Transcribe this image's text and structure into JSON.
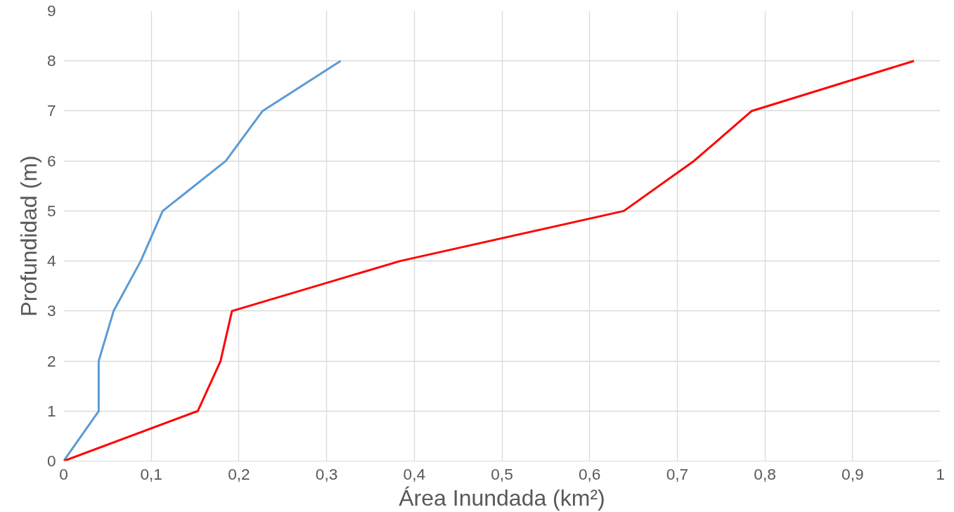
{
  "chart_data": {
    "type": "line",
    "xlabel": "Área Inundada (km²)",
    "ylabel": "Profundidad (m)",
    "xlim": [
      0,
      1
    ],
    "xticks": [
      {
        "value": 0,
        "label": "0"
      },
      {
        "value": 0.1,
        "label": "0,1"
      },
      {
        "value": 0.2,
        "label": "0,2"
      },
      {
        "value": 0.3,
        "label": "0,3"
      },
      {
        "value": 0.4,
        "label": "0,4"
      },
      {
        "value": 0.5,
        "label": "0,5"
      },
      {
        "value": 0.6,
        "label": "0,6"
      },
      {
        "value": 0.7,
        "label": "0,7"
      },
      {
        "value": 0.8,
        "label": "0,8"
      },
      {
        "value": 0.9,
        "label": "0,9"
      },
      {
        "value": 1,
        "label": "1"
      }
    ],
    "ylim": [
      0,
      9
    ],
    "yticks": [
      0,
      1,
      2,
      3,
      4,
      5,
      6,
      7,
      8,
      9
    ],
    "grid": true,
    "marker": "none",
    "line_style": "solid",
    "series": [
      {
        "color": "#5b9bd5",
        "x": [
          0,
          0.04,
          0.04,
          0.057,
          0.088,
          0.113,
          0.185,
          0.227,
          0.316
        ],
        "values": [
          0,
          1,
          2,
          3,
          4,
          5,
          6,
          7,
          8
        ]
      },
      {
        "color": "#ff0000",
        "x": [
          0,
          0.153,
          0.179,
          0.192,
          0.384,
          0.639,
          0.719,
          0.785,
          0.97
        ],
        "values": [
          0,
          1,
          2,
          3,
          4,
          5,
          6,
          7,
          8
        ]
      }
    ]
  }
}
